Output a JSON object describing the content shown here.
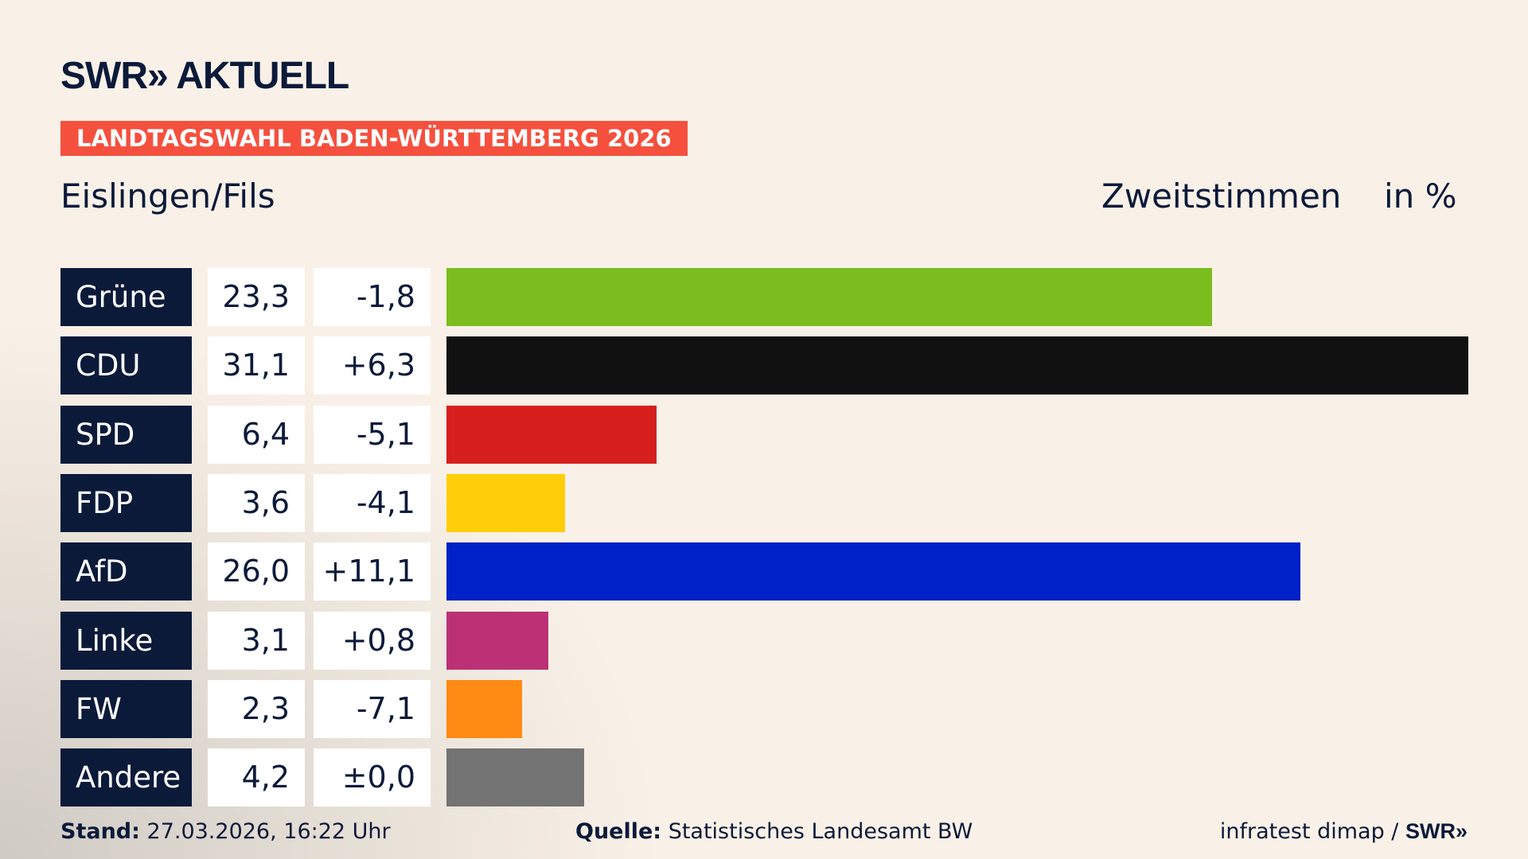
{
  "header": {
    "logo": "SWR» AKTUELL",
    "banner": "LANDTAGSWAHL BADEN-WÜRTTEMBERG 2026",
    "place": "Eislingen/Fils",
    "vote_type": "Zweitstimmen",
    "unit": "in %"
  },
  "chart_data": {
    "type": "bar",
    "orientation": "horizontal",
    "categories": [
      "Grüne",
      "CDU",
      "SPD",
      "FDP",
      "AfD",
      "Linke",
      "FW",
      "Andere"
    ],
    "values": [
      23.3,
      31.1,
      6.4,
      3.6,
      26.0,
      3.1,
      2.3,
      4.2
    ],
    "value_labels": [
      "23,3",
      "31,1",
      "6,4",
      "3,6",
      "26,0",
      "3,1",
      "2,3",
      "4,2"
    ],
    "changes": [
      "-1,8",
      "+6,3",
      "-5,1",
      "-4,1",
      "+11,1",
      "+0,8",
      "-7,1",
      "±0,0"
    ],
    "colors": [
      "#7bbd1e",
      "#111111",
      "#d7201e",
      "#ffcd0a",
      "#0020c8",
      "#bc3175",
      "#ff8a14",
      "#737373"
    ]
  },
  "footer": {
    "stand_label": "Stand:",
    "stand": "27.03.2026, 16:22 Uhr",
    "source_label": "Quelle:",
    "source": "Statistisches Landesamt BW",
    "credit": "infratest dimap / ",
    "credit_logo": "SWR»"
  }
}
